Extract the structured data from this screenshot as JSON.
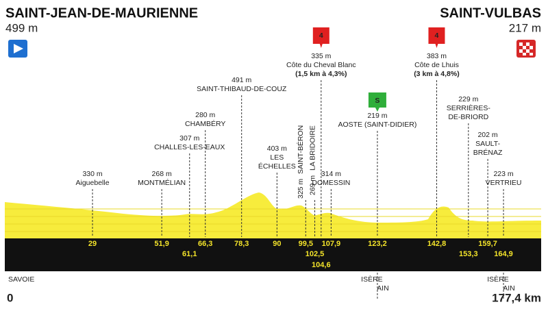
{
  "start": {
    "name": "SAINT-JEAN-DE-MAURIENNE",
    "altitude": "499 m",
    "km": "0",
    "region": "SAVOIE"
  },
  "finish": {
    "name": "SAINT-VULBAS",
    "altitude": "217 m",
    "km": "177,4 km"
  },
  "waypoints": [
    {
      "km": "29",
      "altitude": "330 m",
      "name": [
        "Aiguebelle"
      ]
    },
    {
      "km": "51,9",
      "altitude": "268 m",
      "name": [
        "MONTMÉLIAN"
      ]
    },
    {
      "km": "61,1",
      "altitude": "307 m",
      "name": [
        "CHALLES-LES-EAUX"
      ]
    },
    {
      "km": "66,3",
      "altitude": "280 m",
      "name": [
        "CHAMBÉRY"
      ]
    },
    {
      "km": "78,3",
      "altitude": "491 m",
      "name": [
        "SAINT-THIBAUD-DE-COUZ"
      ]
    },
    {
      "km": "90",
      "altitude": "403 m",
      "name": [
        "LES",
        "ÉCHELLES"
      ]
    },
    {
      "km": "99,5",
      "altitude": "325 m",
      "name": [
        "SAINT-BÉRON"
      ]
    },
    {
      "km": "102,5",
      "altitude": "269 m",
      "name": [
        "LA BRIDOIRE"
      ]
    },
    {
      "km": "104,6",
      "altitude": "335 m",
      "name": [
        "Côte du Cheval Blanc"
      ],
      "detail": "(1,5 km à 4,3%)",
      "category": "4"
    },
    {
      "km": "107,9",
      "altitude": "314 m",
      "name": [
        "DOMESSIN"
      ]
    },
    {
      "km": "123,2",
      "altitude": "219 m",
      "name": [
        "AOSTE (SAINT-DIDIER)"
      ],
      "sprint": "S"
    },
    {
      "km": "142,8",
      "altitude": "383 m",
      "name": [
        "Côte de Lhuis"
      ],
      "detail": "(3 km à 4,8%)",
      "category": "4"
    },
    {
      "km": "153,3",
      "altitude": "229 m",
      "name": [
        "SERRIÈRES-",
        "DE-BRIORD"
      ]
    },
    {
      "km": "159,7",
      "altitude": "202 m",
      "name": [
        "SAULT-",
        "BRÉNAZ"
      ]
    },
    {
      "km": "164,9",
      "altitude": "223 m",
      "name": [
        "VERTRIEU"
      ]
    }
  ],
  "borders": [
    [
      "ISÈRE",
      "AIN"
    ],
    [
      "ISÈRE",
      "AIN"
    ]
  ]
}
